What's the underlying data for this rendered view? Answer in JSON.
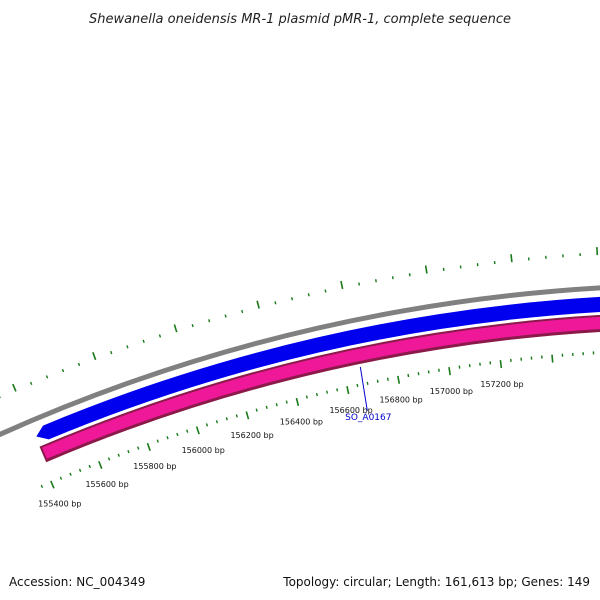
{
  "title": "Shewanella oneidensis MR-1 plasmid pMR-1, complete sequence",
  "footer": {
    "accession": "Accession: NC_004349",
    "summary": "Topology: circular; Length: 161,613 bp; Genes: 149"
  },
  "colors": {
    "backbone": "#808080",
    "forward_strand": "#0000ee",
    "reverse_strand": "#ee1899",
    "reverse_strand_edge": "#8b1a4a",
    "tick_marks": "#1a7a1a",
    "gene_label": "#0000cc"
  },
  "ruler": {
    "ticks": [
      {
        "label": "155400 bp"
      },
      {
        "label": "155600 bp"
      },
      {
        "label": "155800 bp"
      },
      {
        "label": "156000 bp"
      },
      {
        "label": "156200 bp"
      },
      {
        "label": "156400 bp"
      },
      {
        "label": "156600 bp"
      },
      {
        "label": "156800 bp"
      },
      {
        "label": "157000 bp"
      },
      {
        "label": "157200 bp"
      }
    ]
  },
  "genes": [
    {
      "label": "SO_A0167",
      "strand": "reverse"
    }
  ]
}
